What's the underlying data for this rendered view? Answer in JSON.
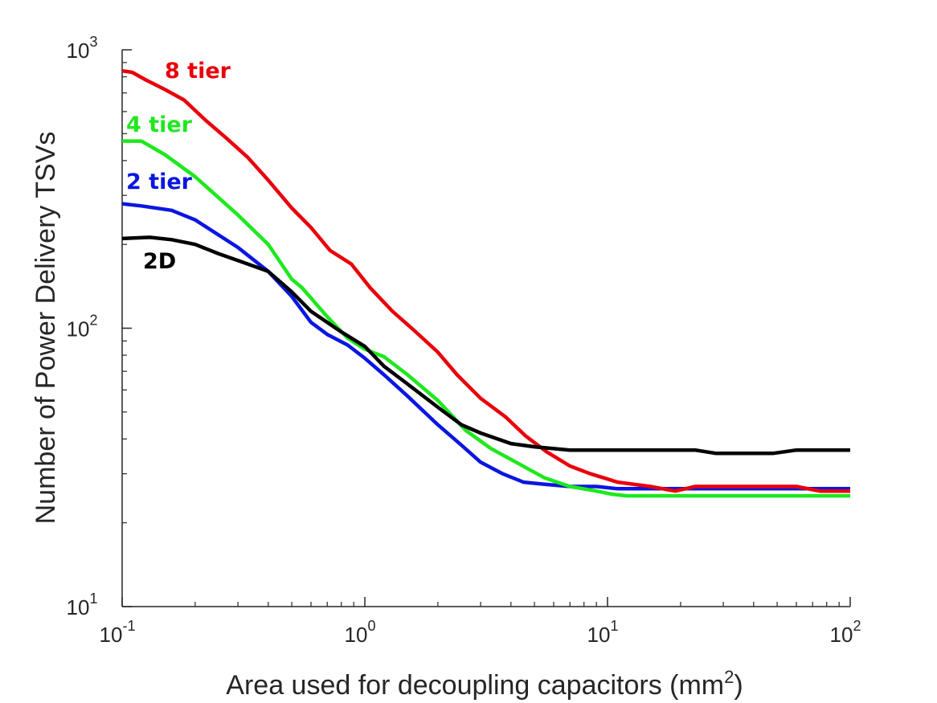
{
  "chart_data": {
    "type": "line",
    "xscale": "log",
    "yscale": "log",
    "xlim": [
      0.1,
      100
    ],
    "ylim": [
      10,
      1000
    ],
    "grid": false,
    "legend": "inline labels near left end of each line",
    "xlabel": {
      "text": "Area used for decoupling capacitors (mm",
      "sup": "2",
      "suffix": ")"
    },
    "ylabel": "Number of Power Delivery TSVs",
    "xticks": [
      {
        "value": 0.1,
        "base": "10",
        "exp": "-1"
      },
      {
        "value": 1,
        "base": "10",
        "exp": "0"
      },
      {
        "value": 10,
        "base": "10",
        "exp": "1"
      },
      {
        "value": 100,
        "base": "10",
        "exp": "2"
      }
    ],
    "yticks": [
      {
        "value": 10,
        "base": "10",
        "exp": "1"
      },
      {
        "value": 100,
        "base": "10",
        "exp": "2"
      },
      {
        "value": 1000,
        "base": "10",
        "exp": "3"
      }
    ],
    "series": [
      {
        "name": "8 tier",
        "color": "#e8000b",
        "x": [
          0.1,
          0.11,
          0.125,
          0.15,
          0.18,
          0.22,
          0.27,
          0.33,
          0.4,
          0.5,
          0.6,
          0.72,
          0.88,
          1.05,
          1.3,
          1.6,
          2.0,
          2.4,
          3.0,
          3.8,
          4.6,
          5.6,
          7.0,
          8.5,
          11,
          15,
          19,
          23,
          30,
          40,
          60,
          75,
          100
        ],
        "y": [
          840,
          830,
          780,
          720,
          660,
          560,
          480,
          410,
          340,
          270,
          230,
          190,
          170,
          140,
          115,
          98,
          82,
          68,
          56,
          48,
          41,
          36,
          32,
          30,
          28,
          27,
          26,
          27,
          27,
          27,
          27,
          26,
          26
        ]
      },
      {
        "name": "4 tier",
        "color": "#1ee81e",
        "x": [
          0.1,
          0.12,
          0.15,
          0.2,
          0.3,
          0.4,
          0.5,
          0.55,
          0.7,
          0.85,
          1.0,
          1.2,
          1.5,
          2.0,
          2.6,
          3.3,
          4.2,
          5.5,
          7.0,
          9.0,
          10.5,
          12,
          20,
          40,
          100
        ],
        "y": [
          470,
          470,
          420,
          350,
          255,
          200,
          150,
          140,
          110,
          92,
          84,
          79,
          68,
          55,
          43,
          37,
          33,
          29,
          27,
          26,
          25.3,
          25,
          25,
          25,
          25
        ]
      },
      {
        "name": "2 tier",
        "color": "#0a16e0",
        "x": [
          0.1,
          0.12,
          0.16,
          0.2,
          0.3,
          0.4,
          0.5,
          0.6,
          0.7,
          0.85,
          1.0,
          1.2,
          1.5,
          2.0,
          2.5,
          3.0,
          3.7,
          4.5,
          5.5,
          7.0,
          9.0,
          11,
          20,
          50,
          100
        ],
        "y": [
          280,
          275,
          265,
          245,
          195,
          160,
          130,
          105,
          95,
          87,
          78,
          68,
          57,
          45,
          38,
          33,
          30,
          28,
          27.5,
          27,
          27,
          26.5,
          26.5,
          26.5,
          26.5
        ]
      },
      {
        "name": "2D",
        "color": "#000000",
        "x": [
          0.1,
          0.13,
          0.16,
          0.2,
          0.25,
          0.3,
          0.4,
          0.5,
          0.6,
          0.8,
          1.0,
          1.2,
          1.5,
          2.0,
          2.5,
          3.0,
          4.0,
          5.0,
          7.0,
          10,
          15,
          20,
          23,
          28,
          35,
          48,
          60,
          100
        ],
        "y": [
          210,
          212,
          208,
          200,
          185,
          175,
          160,
          135,
          115,
          97,
          86,
          73,
          63,
          52,
          45,
          42,
          38.5,
          37.5,
          36.5,
          36.5,
          36.5,
          36.5,
          36.5,
          35.5,
          35.5,
          35.5,
          36.5,
          36.5
        ]
      }
    ]
  }
}
